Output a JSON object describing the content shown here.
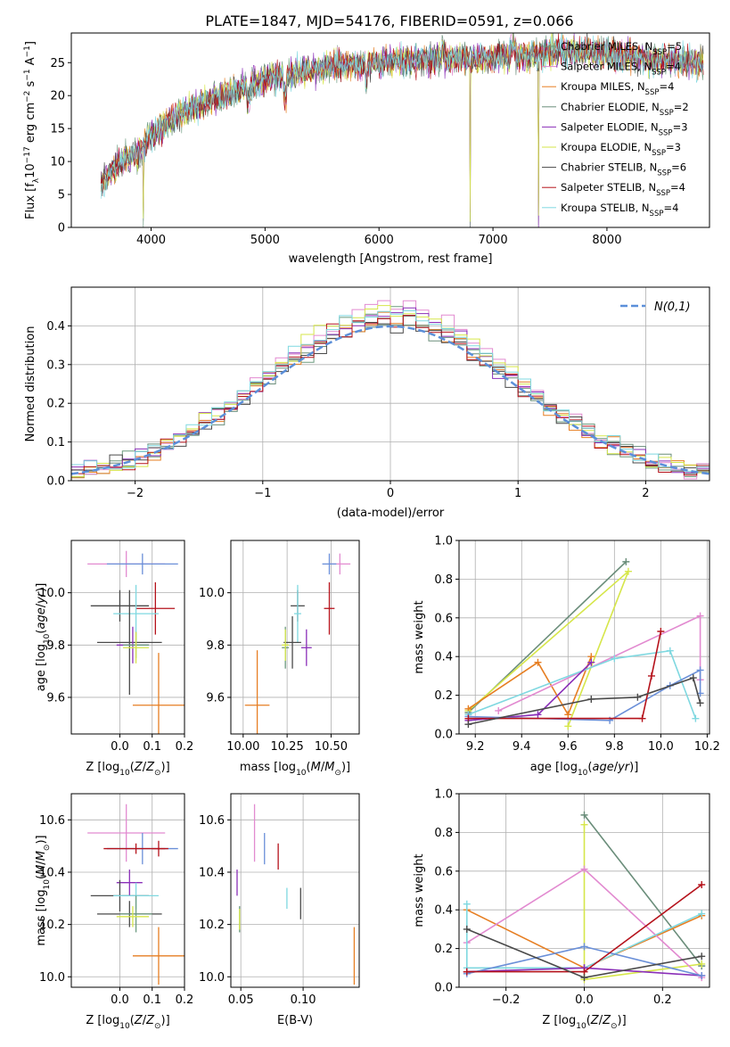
{
  "title": "PLATE=1847, MJD=54176, FIBERID=0591, z=0.066",
  "colors": {
    "Chabrier MILES": "#6b9a7f",
    "Salpeter MILES": "#e28ad0",
    "Kroupa MILES": "#e67e22",
    "Chabrier ELODIE": "#6a8d7a",
    "Salpeter ELODIE": "#8a2fb8",
    "Kroupa ELODIE": "#d6e64a",
    "Chabrier STELIB": "#4a4a4a",
    "Salpeter STELIB": "#b5121b",
    "Kroupa STELIB": "#7fd8e0",
    "blue": "#6a8fd8",
    "normal": "#5b8fd9"
  },
  "chart_data": [
    {
      "type": "line",
      "id": "spectrum",
      "xlabel": "wavelength [Angstrom, rest frame]",
      "ylabel": "Flux [f_λ10^-17 erg cm^-2 s^-1 A^-1]",
      "xlim": [
        3300,
        8900
      ],
      "ylim": [
        0,
        29.5
      ],
      "xticks": [
        4000,
        5000,
        6000,
        7000,
        8000
      ],
      "yticks": [
        0,
        5,
        10,
        15,
        20,
        25
      ],
      "x_range": [
        3560,
        8850
      ],
      "legend_location": "top-right",
      "legend": [
        {
          "label": "Chabrier MILES, N_SSP=5",
          "color": "#6b9a7f"
        },
        {
          "label": "Salpeter MILES, N_SSP=4",
          "color": "#e28ad0"
        },
        {
          "label": "Kroupa MILES, N_SSP=4",
          "color": "#e67e22"
        },
        {
          "label": "Chabrier ELODIE, N_SSP=2",
          "color": "#6a8d7a"
        },
        {
          "label": "Salpeter ELODIE, N_SSP=3",
          "color": "#8a2fb8"
        },
        {
          "label": "Kroupa ELODIE, N_SSP=3",
          "color": "#d6e64a"
        },
        {
          "label": "Chabrier STELIB, N_SSP=6",
          "color": "#4a4a4a"
        },
        {
          "label": "Salpeter STELIB, N_SSP=4",
          "color": "#b5121b"
        },
        {
          "label": "Kroupa STELIB, N_SSP=4",
          "color": "#7fd8e0"
        }
      ],
      "continuum": [
        [
          3560,
          6.5
        ],
        [
          3700,
          9.5
        ],
        [
          3900,
          11.5
        ],
        [
          4000,
          14
        ],
        [
          4200,
          16.5
        ],
        [
          4400,
          18.5
        ],
        [
          4700,
          20.5
        ],
        [
          5000,
          22.5
        ],
        [
          5300,
          23.5
        ],
        [
          5600,
          24.5
        ],
        [
          6000,
          25
        ],
        [
          6400,
          25.5
        ],
        [
          6800,
          25.5
        ],
        [
          7200,
          26
        ],
        [
          7600,
          26.8
        ],
        [
          8000,
          26.5
        ],
        [
          8400,
          25.5
        ],
        [
          8850,
          25
        ]
      ],
      "spikes": [
        [
          3930,
          -10
        ],
        [
          6800,
          -25
        ],
        [
          7400,
          -25
        ],
        [
          7180,
          2
        ]
      ]
    },
    {
      "type": "histogram",
      "id": "residuals",
      "xlabel": "(data-model)/error",
      "ylabel": "Normed distribution",
      "xlim": [
        -2.5,
        2.5
      ],
      "ylim": [
        0,
        0.5
      ],
      "xticks": [
        -2,
        -1,
        0,
        1,
        2
      ],
      "yticks": [
        0.0,
        0.1,
        0.2,
        0.3,
        0.4
      ],
      "bin_width": 0.1,
      "legend": [
        {
          "label": "N(0,1)",
          "color": "#5b8fd9"
        }
      ],
      "legend_location": "top-right"
    },
    {
      "type": "scatter",
      "id": "age_vs_Z",
      "xlabel": "Z [log10(Z/Z☉)]",
      "ylabel": "age [log10(age/yr)]",
      "xlim": [
        -0.15,
        0.2
      ],
      "ylim": [
        9.46,
        10.2
      ],
      "xticks": [
        0.0,
        0.1,
        0.2
      ],
      "yticks": [
        9.6,
        9.8,
        10.0
      ],
      "points": [
        {
          "x": 0.02,
          "y": 10.11,
          "xerr": 0.12,
          "yerr": 0.05,
          "color": "#e28ad0"
        },
        {
          "x": 0.07,
          "y": 10.11,
          "xerr": 0.11,
          "yerr": 0.04,
          "color": "#6a8fd8"
        },
        {
          "x": 0.11,
          "y": 9.94,
          "xerr": 0.06,
          "yerr": 0.1,
          "color": "#b5121b"
        },
        {
          "x": 0.0,
          "y": 9.95,
          "xerr": 0.09,
          "yerr": 0.06,
          "color": "#4a4a4a"
        },
        {
          "x": 0.05,
          "y": 9.92,
          "xerr": 0.07,
          "yerr": 0.11,
          "color": "#7fd8e0"
        },
        {
          "x": 0.03,
          "y": 9.81,
          "xerr": 0.1,
          "yerr": 0.2,
          "color": "#4a4a4a"
        },
        {
          "x": 0.04,
          "y": 9.8,
          "xerr": 0.05,
          "yerr": 0.07,
          "color": "#8a2fb8"
        },
        {
          "x": 0.05,
          "y": 9.8,
          "xerr": 0.04,
          "yerr": 0.05,
          "color": "#6b9a7f"
        },
        {
          "x": 0.05,
          "y": 9.79,
          "xerr": 0.04,
          "yerr": 0.06,
          "color": "#d6e64a"
        },
        {
          "x": 0.12,
          "y": 9.57,
          "xerr": 0.08,
          "yerr": 0.2,
          "color": "#e67e22"
        }
      ]
    },
    {
      "type": "scatter",
      "id": "age_vs_mass",
      "xlabel": "mass [log10(M/M☉)]",
      "ylabel": "",
      "xlim": [
        9.93,
        10.66
      ],
      "ylim": [
        9.46,
        10.2
      ],
      "xticks": [
        10.0,
        10.25,
        10.5
      ],
      "yticks": [
        9.6,
        9.8,
        10.0
      ],
      "points": [
        {
          "x": 10.55,
          "y": 10.11,
          "xerr": 0.06,
          "yerr": 0.04,
          "color": "#e28ad0"
        },
        {
          "x": 10.49,
          "y": 10.11,
          "xerr": 0.04,
          "yerr": 0.04,
          "color": "#6a8fd8"
        },
        {
          "x": 10.49,
          "y": 9.94,
          "xerr": 0.03,
          "yerr": 0.1,
          "color": "#b5121b"
        },
        {
          "x": 10.31,
          "y": 9.95,
          "xerr": 0.04,
          "yerr": 0.06,
          "color": "#4a4a4a"
        },
        {
          "x": 10.31,
          "y": 9.92,
          "xerr": 0.02,
          "yerr": 0.11,
          "color": "#7fd8e0"
        },
        {
          "x": 10.28,
          "y": 9.81,
          "xerr": 0.05,
          "yerr": 0.1,
          "color": "#4a4a4a"
        },
        {
          "x": 10.36,
          "y": 9.79,
          "xerr": 0.03,
          "yerr": 0.07,
          "color": "#8a2fb8"
        },
        {
          "x": 10.24,
          "y": 9.79,
          "xerr": 0.02,
          "yerr": 0.08,
          "color": "#6b9a7f"
        },
        {
          "x": 10.24,
          "y": 9.8,
          "xerr": 0.02,
          "yerr": 0.06,
          "color": "#d6e64a"
        },
        {
          "x": 10.08,
          "y": 9.57,
          "xerr": 0.07,
          "yerr": 0.21,
          "color": "#e67e22"
        }
      ]
    },
    {
      "type": "line",
      "id": "weight_vs_age",
      "xlabel": "age [log10(age/yr)]",
      "ylabel": "mass weight",
      "xlim": [
        9.13,
        10.21
      ],
      "ylim": [
        0.0,
        1.0
      ],
      "xticks": [
        9.2,
        9.4,
        9.6,
        9.8,
        10.0,
        10.2
      ],
      "yticks": [
        0.0,
        0.2,
        0.4,
        0.6,
        0.8,
        1.0
      ],
      "series": [
        {
          "color": "#6a8d7a",
          "points": [
            [
              9.17,
              0.11
            ],
            [
              9.85,
              0.89
            ]
          ]
        },
        {
          "color": "#d6e64a",
          "points": [
            [
              9.17,
              0.12
            ],
            [
              9.86,
              0.84
            ],
            [
              9.6,
              0.04
            ]
          ]
        },
        {
          "color": "#e67e22",
          "points": [
            [
              9.17,
              0.13
            ],
            [
              9.47,
              0.37
            ],
            [
              9.6,
              0.1
            ],
            [
              9.7,
              0.4
            ]
          ]
        },
        {
          "color": "#e28ad0",
          "points": [
            [
              9.3,
              0.12
            ],
            [
              10.17,
              0.61
            ],
            [
              10.17,
              0.28
            ]
          ]
        },
        {
          "color": "#7fd8e0",
          "points": [
            [
              9.17,
              0.1
            ],
            [
              9.8,
              0.39
            ],
            [
              10.04,
              0.43
            ],
            [
              10.15,
              0.08
            ]
          ]
        },
        {
          "color": "#8a2fb8",
          "points": [
            [
              9.17,
              0.07
            ],
            [
              9.47,
              0.1
            ],
            [
              9.7,
              0.37
            ]
          ]
        },
        {
          "color": "#6a8fd8",
          "points": [
            [
              9.17,
              0.09
            ],
            [
              9.78,
              0.07
            ],
            [
              10.04,
              0.25
            ],
            [
              10.17,
              0.33
            ],
            [
              10.17,
              0.21
            ]
          ]
        },
        {
          "color": "#b5121b",
          "points": [
            [
              9.17,
              0.08
            ],
            [
              9.92,
              0.08
            ],
            [
              9.96,
              0.3
            ],
            [
              10.0,
              0.53
            ]
          ]
        },
        {
          "color": "#4a4a4a",
          "points": [
            [
              9.17,
              0.05
            ],
            [
              9.7,
              0.18
            ],
            [
              9.9,
              0.19
            ],
            [
              10.14,
              0.29
            ],
            [
              10.17,
              0.16
            ]
          ]
        }
      ]
    },
    {
      "type": "scatter",
      "id": "mass_vs_Z",
      "xlabel": "Z [log10(Z/Z☉)]",
      "ylabel": "mass [log10(M/M☉)]",
      "xlim": [
        -0.15,
        0.2
      ],
      "ylim": [
        9.96,
        10.7
      ],
      "xticks": [
        0.0,
        0.1,
        0.2
      ],
      "yticks": [
        10.0,
        10.2,
        10.4,
        10.6
      ],
      "points": [
        {
          "x": 0.02,
          "y": 10.55,
          "xerr": 0.12,
          "yerr": 0.11,
          "color": "#e28ad0"
        },
        {
          "x": 0.07,
          "y": 10.49,
          "xerr": 0.11,
          "yerr": 0.06,
          "color": "#6a8fd8"
        },
        {
          "x": 0.05,
          "y": 10.49,
          "xerr": 0.1,
          "yerr": 0.02,
          "color": "#b5121b"
        },
        {
          "x": 0.12,
          "y": 10.49,
          "xerr": 0.02,
          "yerr": 0.03,
          "color": "#b5121b"
        },
        {
          "x": 0.03,
          "y": 10.36,
          "xerr": 0.04,
          "yerr": 0.05,
          "color": "#8a2fb8"
        },
        {
          "x": 0.0,
          "y": 10.31,
          "xerr": 0.09,
          "yerr": 0.06,
          "color": "#4a4a4a"
        },
        {
          "x": 0.05,
          "y": 10.31,
          "xerr": 0.07,
          "yerr": 0.05,
          "color": "#7fd8e0"
        },
        {
          "x": 0.03,
          "y": 10.24,
          "xerr": 0.1,
          "yerr": 0.05,
          "color": "#4a4a4a"
        },
        {
          "x": 0.05,
          "y": 10.24,
          "xerr": 0.05,
          "yerr": 0.07,
          "color": "#6b9a7f"
        },
        {
          "x": 0.04,
          "y": 10.23,
          "xerr": 0.05,
          "yerr": 0.04,
          "color": "#d6e64a"
        },
        {
          "x": 0.12,
          "y": 10.08,
          "xerr": 0.08,
          "yerr": 0.11,
          "color": "#e67e22"
        }
      ]
    },
    {
      "type": "scatter",
      "id": "mass_vs_ebv",
      "xlabel": "E(B-V)",
      "ylabel": "",
      "xlim": [
        0.042,
        0.145
      ],
      "ylim": [
        9.96,
        10.7
      ],
      "xticks": [
        0.05,
        0.1
      ],
      "yticks": [
        10.0,
        10.2,
        10.4,
        10.6
      ],
      "points": [
        {
          "x": 0.061,
          "y": 10.55,
          "xerr": 0,
          "yerr": 0.11,
          "color": "#e28ad0"
        },
        {
          "x": 0.069,
          "y": 10.49,
          "xerr": 0,
          "yerr": 0.06,
          "color": "#6a8fd8"
        },
        {
          "x": 0.08,
          "y": 10.46,
          "xerr": 0,
          "yerr": 0.05,
          "color": "#b5121b"
        },
        {
          "x": 0.047,
          "y": 10.36,
          "xerr": 0,
          "yerr": 0.05,
          "color": "#8a2fb8"
        },
        {
          "x": 0.098,
          "y": 10.28,
          "xerr": 0,
          "yerr": 0.06,
          "color": "#4a4a4a"
        },
        {
          "x": 0.087,
          "y": 10.3,
          "xerr": 0,
          "yerr": 0.04,
          "color": "#7fd8e0"
        },
        {
          "x": 0.049,
          "y": 10.22,
          "xerr": 0,
          "yerr": 0.05,
          "color": "#6b9a7f"
        },
        {
          "x": 0.049,
          "y": 10.22,
          "xerr": 0,
          "yerr": 0.04,
          "color": "#d6e64a"
        },
        {
          "x": 0.141,
          "y": 10.08,
          "xerr": 0,
          "yerr": 0.11,
          "color": "#e67e22"
        }
      ]
    },
    {
      "type": "line",
      "id": "weight_vs_Z",
      "xlabel": "Z [log10(Z/Z☉)]",
      "ylabel": "mass weight",
      "xlim": [
        -0.32,
        0.32
      ],
      "ylim": [
        0.0,
        1.0
      ],
      "xticks": [
        -0.2,
        0.0,
        0.2
      ],
      "yticks": [
        0.0,
        0.2,
        0.4,
        0.6,
        0.8,
        1.0
      ],
      "series": [
        {
          "color": "#6a8d7a",
          "points": [
            [
              0.0,
              0.89
            ],
            [
              0.3,
              0.11
            ]
          ]
        },
        {
          "color": "#d6e64a",
          "points": [
            [
              0.0,
              0.84
            ],
            [
              0.0,
              0.04
            ],
            [
              0.3,
              0.12
            ]
          ]
        },
        {
          "color": "#e67e22",
          "points": [
            [
              -0.3,
              0.4
            ],
            [
              0.0,
              0.1
            ],
            [
              0.3,
              0.37
            ]
          ]
        },
        {
          "color": "#e28ad0",
          "points": [
            [
              -0.3,
              0.23
            ],
            [
              0.0,
              0.61
            ],
            [
              0.3,
              0.05
            ]
          ]
        },
        {
          "color": "#7fd8e0",
          "points": [
            [
              -0.3,
              0.43
            ],
            [
              -0.3,
              0.1
            ],
            [
              0.0,
              0.1
            ],
            [
              0.3,
              0.38
            ]
          ]
        },
        {
          "color": "#8a2fb8",
          "points": [
            [
              -0.3,
              0.08
            ],
            [
              0.0,
              0.1
            ],
            [
              0.3,
              0.06
            ]
          ]
        },
        {
          "color": "#6a8fd8",
          "points": [
            [
              -0.3,
              0.07
            ],
            [
              0.0,
              0.21
            ],
            [
              0.3,
              0.06
            ]
          ]
        },
        {
          "color": "#b5121b",
          "points": [
            [
              -0.3,
              0.08
            ],
            [
              0.0,
              0.08
            ],
            [
              0.3,
              0.53
            ]
          ]
        },
        {
          "color": "#4a4a4a",
          "points": [
            [
              -0.3,
              0.3
            ],
            [
              0.0,
              0.05
            ],
            [
              0.3,
              0.16
            ]
          ]
        }
      ]
    }
  ]
}
